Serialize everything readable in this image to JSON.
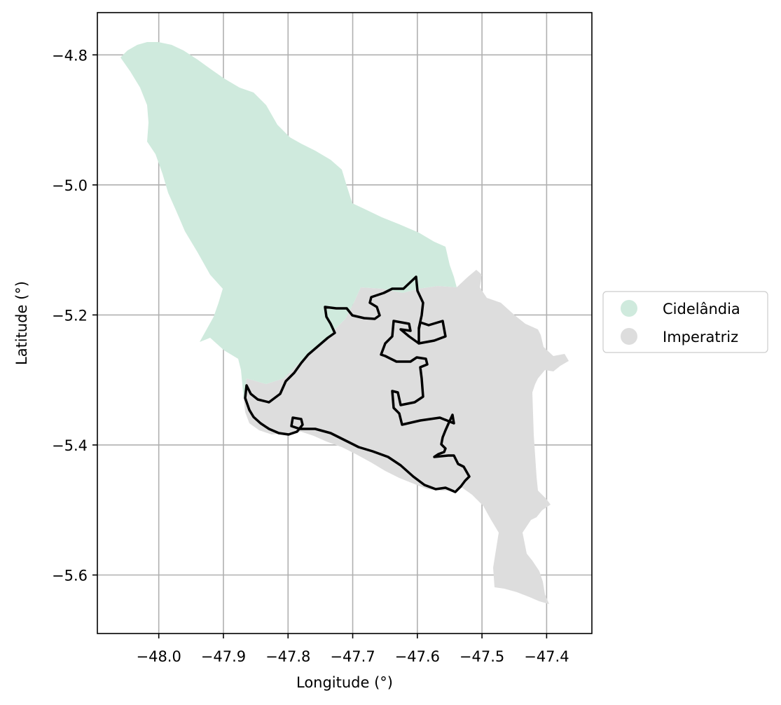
{
  "chart_data": {
    "type": "map",
    "xlabel": "Longitude (°)",
    "ylabel": "Latitude (°)",
    "xlim": [
      -48.095,
      -47.33
    ],
    "ylim": [
      -5.69,
      -4.735
    ],
    "xticks": [
      {
        "value": -48.0,
        "label": "−48.0"
      },
      {
        "value": -47.9,
        "label": "−47.9"
      },
      {
        "value": -47.8,
        "label": "−47.8"
      },
      {
        "value": -47.7,
        "label": "−47.7"
      },
      {
        "value": -47.6,
        "label": "−47.6"
      },
      {
        "value": -47.5,
        "label": "−47.5"
      },
      {
        "value": -47.4,
        "label": "−47.4"
      }
    ],
    "yticks": [
      {
        "value": -4.8,
        "label": "−4.8"
      },
      {
        "value": -5.0,
        "label": "−5.0"
      },
      {
        "value": -5.2,
        "label": "−5.2"
      },
      {
        "value": -5.4,
        "label": "−5.4"
      },
      {
        "value": -5.6,
        "label": "−5.6"
      }
    ],
    "grid": true,
    "legend_position": "right",
    "series": [
      {
        "name": "Cidelândia",
        "color": "#cfeadd"
      },
      {
        "name": "Imperatriz",
        "color": "#dddddd"
      }
    ],
    "outline_color": "#000000"
  }
}
